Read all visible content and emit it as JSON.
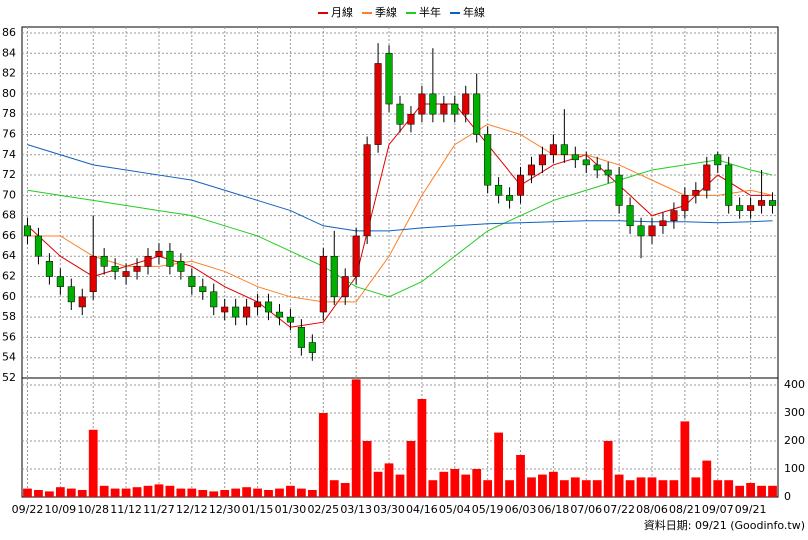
{
  "chart_data": {
    "type": "candlestick",
    "lines": [
      {
        "name": "月線",
        "color": "#e00000",
        "x": [
          0,
          3,
          6,
          9,
          12,
          15,
          18,
          21,
          24,
          27,
          30,
          33,
          36,
          39,
          42,
          45,
          48,
          51,
          54,
          57,
          60,
          63,
          66,
          68
        ],
        "values": [
          67,
          64,
          62,
          63,
          64,
          63,
          61,
          59.5,
          57,
          57.5,
          62,
          75,
          79,
          79,
          75,
          71,
          73,
          74,
          71,
          68,
          69,
          72,
          70,
          70
        ]
      },
      {
        "name": "季線",
        "color": "#ff7f27",
        "x": [
          0,
          3,
          6,
          9,
          12,
          15,
          18,
          21,
          24,
          27,
          30,
          33,
          36,
          39,
          42,
          45,
          48,
          51,
          54,
          57,
          60,
          63,
          66,
          68
        ],
        "values": [
          66,
          66,
          64,
          63,
          63,
          63.5,
          62.5,
          61,
          60,
          59.5,
          59.5,
          64,
          70,
          75,
          77,
          76,
          74,
          74,
          73,
          71.5,
          70,
          70,
          70.5,
          70
        ]
      },
      {
        "name": "半年",
        "color": "#22cc22",
        "x": [
          0,
          3,
          6,
          9,
          12,
          15,
          18,
          21,
          24,
          27,
          30,
          33,
          36,
          39,
          42,
          45,
          48,
          51,
          54,
          57,
          60,
          63,
          66,
          68
        ],
        "values": [
          70.5,
          70,
          69.5,
          69,
          68.5,
          68,
          67,
          66,
          64.5,
          63,
          61,
          60,
          61.5,
          64,
          66.5,
          68,
          69.5,
          70.5,
          71.5,
          72.5,
          73,
          73.5,
          72.5,
          72
        ]
      },
      {
        "name": "年線",
        "color": "#1060c0",
        "x": [
          0,
          3,
          6,
          9,
          12,
          15,
          18,
          21,
          24,
          27,
          30,
          33,
          36,
          39,
          42,
          45,
          48,
          51,
          54,
          57,
          60,
          63,
          66,
          68
        ],
        "values": [
          75,
          74,
          73,
          72.5,
          72,
          71.5,
          70.5,
          69.5,
          68.5,
          67,
          66.5,
          66.5,
          66.8,
          67,
          67.2,
          67.3,
          67.4,
          67.5,
          67.5,
          67.4,
          67.4,
          67.3,
          67.4,
          67.5
        ]
      }
    ],
    "open": [
      67,
      66,
      63.5,
      62,
      61,
      59,
      60.5,
      64,
      63,
      62,
      62.5,
      63,
      64,
      64.5,
      63.5,
      62,
      61,
      60.5,
      58.5,
      59,
      58,
      59,
      59.5,
      58.5,
      58,
      57,
      55.5,
      58.5,
      64,
      60,
      62,
      66,
      75,
      84,
      79,
      77,
      78,
      80,
      78,
      79,
      78,
      80,
      76,
      71,
      70,
      70,
      72,
      73,
      74,
      75,
      74,
      73.5,
      73,
      72.5,
      72,
      69,
      67,
      66,
      67,
      67.5,
      68.5,
      70,
      70.5,
      74,
      73,
      69,
      68.5,
      69,
      69.5
    ],
    "high": [
      67.8,
      66.8,
      64.3,
      62.8,
      61.8,
      60.8,
      68,
      64.8,
      63.8,
      63.3,
      63.8,
      64.8,
      65.3,
      65.3,
      64.3,
      62.8,
      61.8,
      61.3,
      59.8,
      59.8,
      59.8,
      60.3,
      60.3,
      59.3,
      58.8,
      57.8,
      56.3,
      64.8,
      66.5,
      62.8,
      66.8,
      75.8,
      85,
      84.8,
      79.8,
      78.8,
      80.8,
      84.5,
      79.8,
      79.8,
      80.8,
      82,
      76.8,
      71.8,
      70.8,
      72.8,
      73.8,
      74.8,
      76,
      78.5,
      74.8,
      74.3,
      73.8,
      73.3,
      72.8,
      69.8,
      67.8,
      67.8,
      68.3,
      69.3,
      70.8,
      71.3,
      73.8,
      74.3,
      73.8,
      69.8,
      69.8,
      72.5,
      70.3
    ],
    "low": [
      65.2,
      63.2,
      61.2,
      60.2,
      58.7,
      58.2,
      59.7,
      62.2,
      61.7,
      61.2,
      61.7,
      62.2,
      63.2,
      62.2,
      61.7,
      60.2,
      59.7,
      58.2,
      57.7,
      57.2,
      57.2,
      58.2,
      57.7,
      57.2,
      56.7,
      54.2,
      53.7,
      57.7,
      59.2,
      59.2,
      61.2,
      65.2,
      74.2,
      78.2,
      76.2,
      76.2,
      77.2,
      77.2,
      77.2,
      77.2,
      77.2,
      75.2,
      70.2,
      69.2,
      68.7,
      69.2,
      71.2,
      72.2,
      73.2,
      73.2,
      72.7,
      72.2,
      71.7,
      71.2,
      68.2,
      66.2,
      63.8,
      65.2,
      66.2,
      66.7,
      67.7,
      69.2,
      69.7,
      72.2,
      68.2,
      67.7,
      67.7,
      68.2,
      68.2
    ],
    "close": [
      66,
      64,
      62,
      61,
      59.5,
      60,
      64,
      63,
      62.5,
      62.5,
      63,
      64,
      64.5,
      63,
      62.5,
      61,
      60.5,
      59,
      59,
      58,
      59,
      59.5,
      58.5,
      58,
      57.5,
      55,
      54.5,
      64,
      60,
      62,
      66,
      75,
      83,
      79,
      77,
      78,
      80,
      78,
      79,
      78,
      80,
      76,
      71,
      70,
      69.5,
      72,
      73,
      74,
      75,
      74,
      73.5,
      73,
      72.5,
      72,
      69,
      67,
      66,
      67,
      67.5,
      68.5,
      70,
      70.5,
      73,
      73,
      69,
      68.5,
      69,
      69.5,
      69
    ],
    "up_color": "#e00000",
    "down_color": "#00b000",
    "ylim": [
      52,
      86
    ],
    "yticks": [
      52,
      54,
      56,
      58,
      60,
      62,
      64,
      66,
      68,
      70,
      72,
      74,
      76,
      78,
      80,
      82,
      84,
      86
    ],
    "xlim": [
      0,
      69
    ],
    "xticks": [
      {
        "value": 0,
        "label": "09/22"
      },
      {
        "value": 3,
        "label": "10/09"
      },
      {
        "value": 6,
        "label": "10/28"
      },
      {
        "value": 9,
        "label": "11/12"
      },
      {
        "value": 12,
        "label": "11/27"
      },
      {
        "value": 15,
        "label": "12/12"
      },
      {
        "value": 18,
        "label": "12/30"
      },
      {
        "value": 21,
        "label": "01/15"
      },
      {
        "value": 24,
        "label": "01/30"
      },
      {
        "value": 27,
        "label": "02/25"
      },
      {
        "value": 30,
        "label": "03/13"
      },
      {
        "value": 33,
        "label": "03/30"
      },
      {
        "value": 36,
        "label": "04/16"
      },
      {
        "value": 39,
        "label": "05/04"
      },
      {
        "value": 42,
        "label": "05/19"
      },
      {
        "value": 45,
        "label": "06/03"
      },
      {
        "value": 48,
        "label": "06/18"
      },
      {
        "value": 51,
        "label": "07/06"
      },
      {
        "value": 54,
        "label": "07/22"
      },
      {
        "value": 57,
        "label": "08/06"
      },
      {
        "value": 60,
        "label": "08/21"
      },
      {
        "value": 63,
        "label": "09/07"
      },
      {
        "value": 66,
        "label": "09/21"
      }
    ],
    "grid": true,
    "volume": {
      "type": "bar",
      "color": "#ff0000",
      "ylim": [
        0,
        425
      ],
      "yticks": [
        0,
        100,
        200,
        300,
        400
      ],
      "values": [
        30,
        25,
        20,
        35,
        30,
        25,
        240,
        40,
        30,
        30,
        35,
        40,
        45,
        40,
        30,
        30,
        25,
        20,
        25,
        30,
        35,
        30,
        25,
        30,
        40,
        30,
        25,
        300,
        60,
        50,
        420,
        200,
        90,
        120,
        80,
        200,
        350,
        60,
        90,
        100,
        80,
        100,
        60,
        230,
        60,
        150,
        70,
        80,
        90,
        60,
        70,
        60,
        60,
        200,
        80,
        60,
        70,
        70,
        60,
        60,
        270,
        70,
        130,
        60,
        60,
        40,
        50,
        40,
        40
      ]
    },
    "footer": "資料日期: 09/21 (Goodinfo.tw)"
  }
}
